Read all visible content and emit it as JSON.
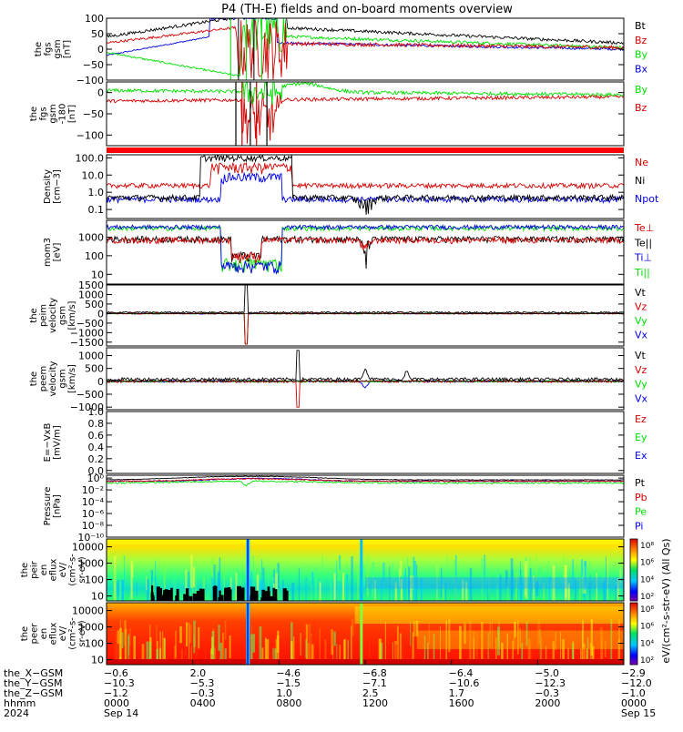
{
  "title": "P4 (TH-E) fields and on-board moments overview",
  "colors": {
    "black": "#000000",
    "red": "#d40000",
    "green": "#00e000",
    "blue": "#0000e6",
    "orange": "#ff8c00"
  },
  "chart_data": [
    {
      "type": "line",
      "id": "fgs_gsm",
      "ylabel_lines": [
        "the",
        "fgs",
        "gsm",
        "[nT]"
      ],
      "ylim": [
        -100,
        100
      ],
      "yticks": [
        "100",
        "50",
        "0",
        "−50",
        "−100"
      ],
      "ytick_values": [
        100,
        50,
        0,
        -50,
        -100
      ],
      "legend": [
        {
          "name": "Bt",
          "color": "#000000"
        },
        {
          "name": "Bz",
          "color": "#d40000"
        },
        {
          "name": "By",
          "color": "#00e000"
        },
        {
          "name": "Bx",
          "color": "#0000e6"
        }
      ]
    },
    {
      "type": "line",
      "id": "fgs_gsm_rot",
      "ylabel_lines": [
        "the",
        "fgs",
        "gsm",
        "-180",
        "[nT]"
      ],
      "ylim": [
        -125,
        25
      ],
      "yticks": [
        "0",
        "−50",
        "−100"
      ],
      "ytick_values": [
        0,
        -50,
        -100
      ],
      "legend": [
        {
          "name": "By",
          "color": "#00e000"
        },
        {
          "name": "Bz",
          "color": "#d40000"
        }
      ]
    },
    {
      "type": "line",
      "id": "density",
      "ylabel_lines": [
        "Density",
        "[cm−3]"
      ],
      "log": true,
      "ylim": [
        0.03,
        150
      ],
      "yticks": [
        "100.0",
        "10.0",
        "1.0",
        "0.1"
      ],
      "ytick_values": [
        100,
        10,
        1,
        0.1
      ],
      "legend": [
        {
          "name": "Ne",
          "color": "#d40000"
        },
        {
          "name": "Ni",
          "color": "#000000"
        },
        {
          "name": "Npot",
          "color": "#0000e6"
        }
      ]
    },
    {
      "type": "line",
      "id": "temperature",
      "ylabel_lines": [
        "mom3",
        "[eV]"
      ],
      "log": true,
      "ylim": [
        3,
        8000
      ],
      "yticks": [
        "1000",
        "100",
        "10"
      ],
      "ytick_values": [
        1000,
        100,
        10
      ],
      "legend": [
        {
          "name": "Te⊥",
          "color": "#d40000"
        },
        {
          "name": "Te||",
          "color": "#000000"
        },
        {
          "name": "Ti⊥",
          "color": "#0000e6"
        },
        {
          "name": "Ti||",
          "color": "#00e000"
        }
      ]
    },
    {
      "type": "line",
      "id": "peim_velocity",
      "ylabel_lines": [
        "the",
        "peim",
        "velocity",
        "gsm",
        "[km/s]"
      ],
      "ylim": [
        -1700,
        1500
      ],
      "yticks": [
        "1500",
        "1000",
        "500",
        "0",
        "−500",
        "−1000",
        "−1500"
      ],
      "ytick_values": [
        1500,
        1000,
        500,
        0,
        -500,
        -1000,
        -1500
      ],
      "legend": [
        {
          "name": "Vt",
          "color": "#000000"
        },
        {
          "name": "Vz",
          "color": "#d40000"
        },
        {
          "name": "Vy",
          "color": "#00e000"
        },
        {
          "name": "Vx",
          "color": "#0000e6"
        }
      ]
    },
    {
      "type": "line",
      "id": "peem_velocity",
      "ylabel_lines": [
        "the",
        "peem",
        "velocity",
        "gsm",
        "[km/s]"
      ],
      "ylim": [
        -1100,
        1300
      ],
      "yticks": [
        "1000",
        "500",
        "0",
        "−500",
        "−1000"
      ],
      "ytick_values": [
        1000,
        500,
        0,
        -500,
        -1000
      ],
      "legend": [
        {
          "name": "Vt",
          "color": "#000000"
        },
        {
          "name": "Vz",
          "color": "#d40000"
        },
        {
          "name": "Vy",
          "color": "#00e000"
        },
        {
          "name": "Vx",
          "color": "#0000e6"
        }
      ]
    },
    {
      "type": "line",
      "id": "efield",
      "ylabel_lines": [
        "E=−VxB",
        "[mV/m]"
      ],
      "ylim": [
        -0.05,
        1.0
      ],
      "yticks": [
        "1.0",
        "0.8",
        "0.6",
        "0.4",
        "0.2",
        "0.0"
      ],
      "ytick_values": [
        1.0,
        0.8,
        0.6,
        0.4,
        0.2,
        0.0
      ],
      "legend": [
        {
          "name": "Ez",
          "color": "#d40000"
        },
        {
          "name": "Ey",
          "color": "#00e000"
        },
        {
          "name": "Ex",
          "color": "#0000e6"
        }
      ]
    },
    {
      "type": "line",
      "id": "pressure",
      "ylabel_lines": [
        "Pressure",
        "[nPa]"
      ],
      "log": true,
      "ylim": [
        1e-10,
        3
      ],
      "yticks": [
        "10⁰",
        "10⁻²",
        "10⁻⁴",
        "10⁻⁶",
        "10⁻⁸",
        "10⁻¹⁰"
      ],
      "ytick_values": [
        1,
        0.01,
        0.0001,
        1e-06,
        1e-08,
        1e-10
      ],
      "legend": [
        {
          "name": "Pt",
          "color": "#000000"
        },
        {
          "name": "Pb",
          "color": "#d40000"
        },
        {
          "name": "Pe",
          "color": "#00e000"
        },
        {
          "name": "Pi",
          "color": "#0000e6"
        }
      ]
    },
    {
      "type": "heatmap",
      "id": "peir_spectrogram",
      "ylabel_lines": [
        "the",
        "peir",
        "en",
        "eflux",
        "eV/",
        "(cm²-s-",
        "sr-eV)"
      ],
      "log": true,
      "ylim": [
        5,
        30000
      ],
      "yticks": [
        "10000",
        "1000",
        "100",
        "10"
      ],
      "ytick_values": [
        10000,
        1000,
        100,
        10
      ]
    },
    {
      "type": "heatmap",
      "id": "peer_spectrogram",
      "ylabel_lines": [
        "the",
        "peer",
        "en",
        "eflux",
        "eV/",
        "(cm²-s-",
        "sr-eV)"
      ],
      "log": true,
      "ylim": [
        5,
        30000
      ],
      "yticks": [
        "10000",
        "1000",
        "100",
        "10"
      ],
      "ytick_values": [
        10000,
        1000,
        100,
        10
      ]
    }
  ],
  "colorbars": [
    {
      "id": "cb1",
      "ticks": [
        "10⁸",
        "10⁶",
        "10⁴",
        "10²"
      ],
      "label": "eV/(cm²-s-str-eV) (All Qs)"
    },
    {
      "id": "cb2",
      "ticks": [
        "10⁸",
        "10⁶",
        "10⁴",
        "10²"
      ],
      "label": "eV/(cm²-s-str-eV) (All Qs)"
    }
  ],
  "xaxis": {
    "row_labels": [
      "the_X−GSM",
      "the_Y−GSM",
      "the_Z−GSM",
      "hhmm",
      "2024"
    ],
    "columns": [
      [
        "−0.6",
        "−10.3",
        "−1.2",
        "0000",
        "Sep 14"
      ],
      [
        "2.0",
        "−5.3",
        "−0.3",
        "0400",
        ""
      ],
      [
        "−4.6",
        "−1.5",
        "1.0",
        "0800",
        ""
      ],
      [
        "−6.8",
        "−7.1",
        "2.5",
        "1200",
        ""
      ],
      [
        "−6.4",
        "−10.6",
        "1.7",
        "1600",
        ""
      ],
      [
        "−5.0",
        "−12.3",
        "−0.3",
        "2000",
        ""
      ],
      [
        "−2.9",
        "−12.0",
        "−1.0",
        "0000",
        "Sep 15"
      ]
    ]
  }
}
